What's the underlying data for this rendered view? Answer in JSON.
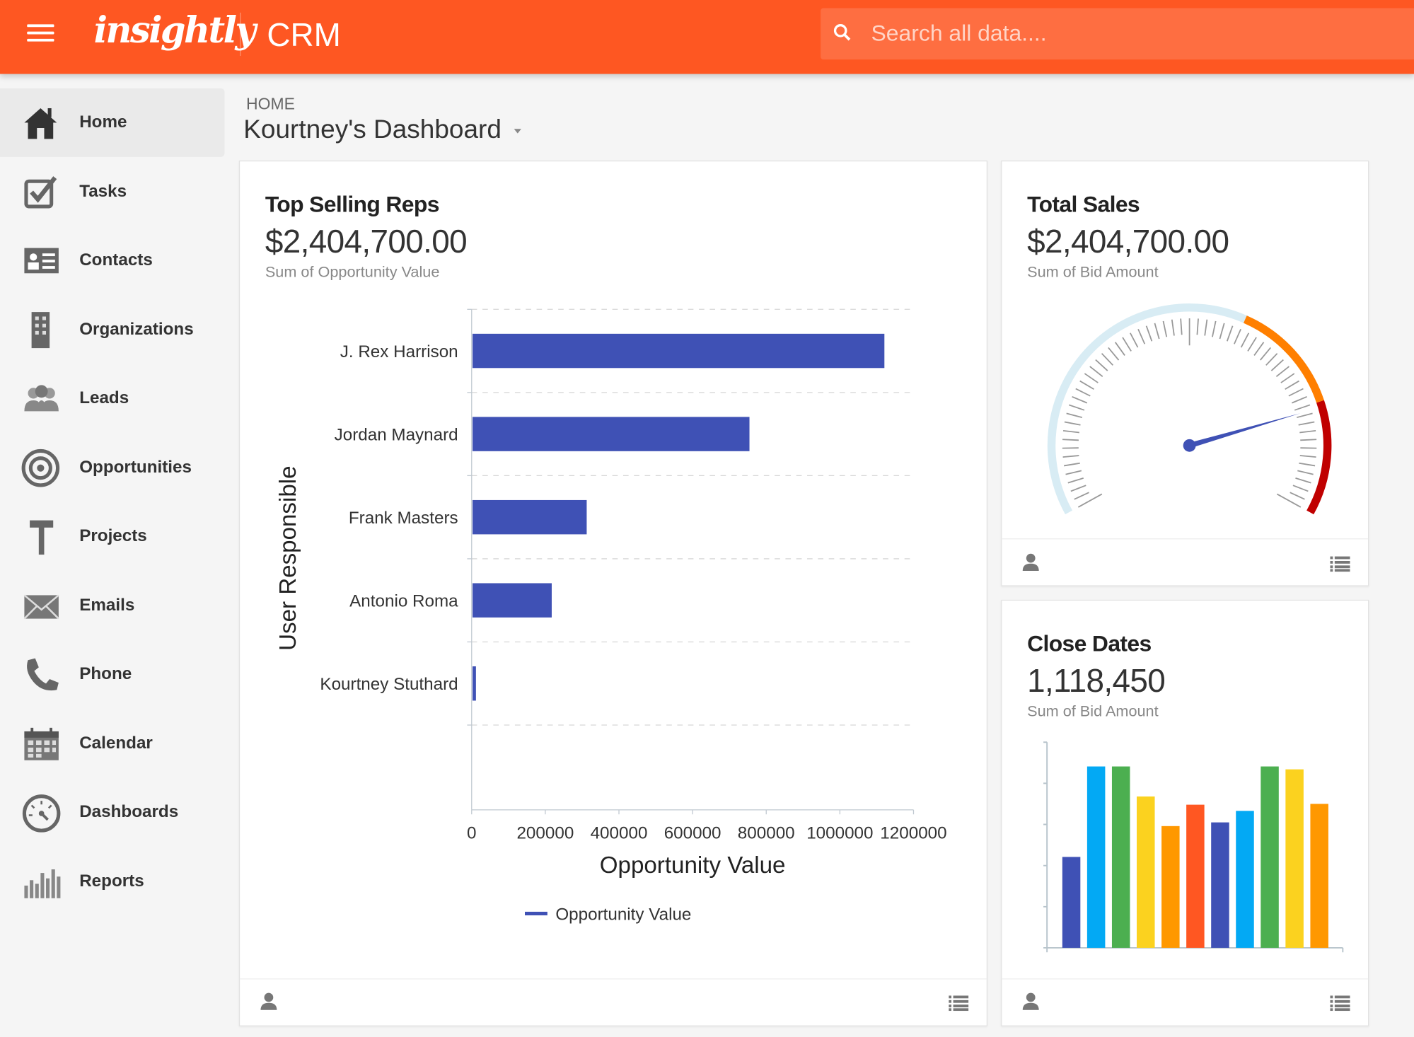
{
  "header": {
    "logo": "insightly",
    "app": "CRM",
    "search_placeholder": "Search all data...."
  },
  "sidebar": {
    "items": [
      {
        "label": "Home",
        "icon": "home-icon",
        "active": true
      },
      {
        "label": "Tasks",
        "icon": "tasks-icon"
      },
      {
        "label": "Contacts",
        "icon": "contacts-icon"
      },
      {
        "label": "Organizations",
        "icon": "organizations-icon"
      },
      {
        "label": "Leads",
        "icon": "leads-icon"
      },
      {
        "label": "Opportunities",
        "icon": "opportunities-icon"
      },
      {
        "label": "Projects",
        "icon": "projects-icon"
      },
      {
        "label": "Emails",
        "icon": "emails-icon"
      },
      {
        "label": "Phone",
        "icon": "phone-icon"
      },
      {
        "label": "Calendar",
        "icon": "calendar-icon"
      },
      {
        "label": "Dashboards",
        "icon": "dashboards-icon"
      },
      {
        "label": "Reports",
        "icon": "reports-icon"
      }
    ]
  },
  "page": {
    "breadcrumb": "HOME",
    "title": "Kourtney's Dashboard"
  },
  "colors": {
    "brand": "#fe5722",
    "bar": "#3f51b5",
    "gauge_track": "#d8ecf4",
    "gauge_warn": "#ff7f00",
    "gauge_danger": "#c00000"
  },
  "cards": {
    "top_reps": {
      "title": "Top Selling Reps",
      "value": "$2,404,700.00",
      "subtitle": "Sum of Opportunity Value"
    },
    "total_sales": {
      "title": "Total Sales",
      "value": "$2,404,700.00",
      "subtitle": "Sum of Bid Amount"
    },
    "close_dates": {
      "title": "Close Dates",
      "value": "1,118,450",
      "subtitle": "Sum of Bid Amount"
    }
  },
  "chart_data": [
    {
      "type": "bar",
      "orientation": "horizontal",
      "categories": [
        "J. Rex Harrison",
        "Jordan Maynard",
        "Frank Masters",
        "Antonio Roma",
        "Kourtney Stuthard"
      ],
      "series": [
        {
          "name": "Opportunity Value",
          "values": [
            1118450,
            752000,
            310000,
            215000,
            9250
          ]
        }
      ],
      "xlabel": "Opportunity Value",
      "ylabel": "User Responsible",
      "xlim": [
        0,
        1200000
      ],
      "xticks": [
        "0",
        "200000",
        "400000",
        "600000",
        "800000",
        "1000000",
        "1200000"
      ],
      "grid": true,
      "legend": "bottom"
    },
    {
      "type": "gauge",
      "value_fraction": 0.81,
      "bands": [
        {
          "from": 0,
          "to": 0.6,
          "color": "#d8ecf4"
        },
        {
          "from": 0.6,
          "to": 0.8,
          "color": "#ff7f00"
        },
        {
          "from": 0.8,
          "to": 1,
          "color": "#c00000"
        }
      ]
    },
    {
      "type": "bar",
      "values": [
        2.21,
        4.41,
        4.41,
        3.68,
        2.96,
        3.48,
        3.05,
        3.33,
        4.41,
        4.34,
        3.5
      ],
      "ylim": [
        0,
        5
      ],
      "colors": [
        "#3f51b5",
        "#03a9f4",
        "#4caf50",
        "#fbd21f",
        "#ff9800",
        "#ff5722",
        "#3f51b5",
        "#03a9f4",
        "#4caf50",
        "#fbd21f",
        "#ff9800"
      ]
    }
  ]
}
